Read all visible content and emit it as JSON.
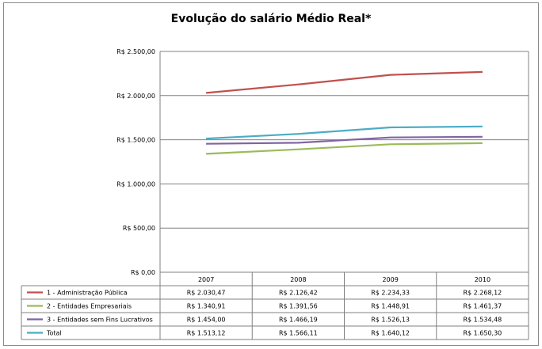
{
  "chart_data": {
    "type": "line",
    "title": "Evolução do salário Médio Real*",
    "categories": [
      "2007",
      "2008",
      "2009",
      "2010"
    ],
    "ylim": [
      0,
      2500
    ],
    "yticks": [
      0,
      500,
      1000,
      1500,
      2000,
      2500
    ],
    "ytick_labels": [
      "R$ 0,00",
      "R$ 500,00",
      "R$ 1.000,00",
      "R$ 1.500,00",
      "R$ 2.000,00",
      "R$ 2.500,00"
    ],
    "grid": true,
    "legend_placement": "data-table",
    "series": [
      {
        "name": "1 - Administração Pública",
        "color": "#c0504d",
        "values": [
          2030.47,
          2126.42,
          2234.33,
          2268.12
        ],
        "labels": [
          "R$ 2.030,47",
          "R$ 2.126,42",
          "R$ 2.234,33",
          "R$ 2.268,12"
        ]
      },
      {
        "name": "2 - Entidades Empresariais",
        "color": "#9bbb59",
        "values": [
          1340.91,
          1391.56,
          1448.91,
          1461.37
        ],
        "labels": [
          "R$ 1.340,91",
          "R$ 1.391,56",
          "R$ 1.448,91",
          "R$ 1.461,37"
        ]
      },
      {
        "name": "3 - Entidades sem Fins Lucrativos",
        "color": "#8064a2",
        "values": [
          1454.0,
          1466.19,
          1526.13,
          1534.48
        ],
        "labels": [
          "R$ 1.454,00",
          "R$ 1.466,19",
          "R$ 1.526,13",
          "R$ 1.534,48"
        ]
      },
      {
        "name": "Total",
        "color": "#4bacc6",
        "values": [
          1513.12,
          1566.11,
          1640.12,
          1650.3
        ],
        "labels": [
          "R$ 1.513,12",
          "R$ 1.566,11",
          "R$ 1.640,12",
          "R$ 1.650,30"
        ]
      }
    ]
  }
}
